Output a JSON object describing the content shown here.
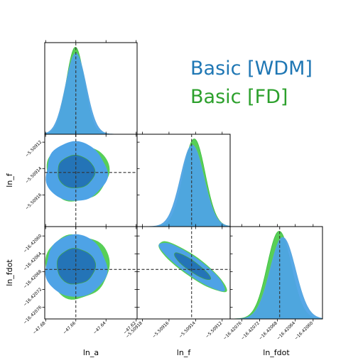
{
  "chart_data": {
    "type": "corner",
    "parameters": [
      "ln_a",
      "ln_f",
      "ln_fdot"
    ],
    "axis_labels": {
      "x": [
        "ln_a",
        "ln_f",
        "ln_fdot"
      ],
      "y": [
        "ln_f",
        "ln_fdot"
      ]
    },
    "truth": {
      "ln_a": -47.66,
      "ln_f": -5.509143,
      "ln_fdot": -16.420675
    },
    "ticks": {
      "ln_a": [
        -47.68,
        -47.66,
        -47.64,
        -47.62
      ],
      "ln_f": [
        -5.50918,
        -5.50916,
        -5.50914,
        -5.50912
      ],
      "ln_f_y": [
        -5.50912,
        -5.50914,
        -5.50916
      ],
      "ln_fdot": [
        -16.42076,
        -16.42072,
        -16.42068,
        -16.42064,
        -16.4206
      ],
      "ln_fdot_y": [
        -16.4206,
        -16.42064,
        -16.42068,
        -16.42072,
        -16.42076
      ]
    },
    "tick_text": {
      "ln_a": [
        "−47.68",
        "−47.66",
        "−47.64",
        "−47.62"
      ],
      "ln_f": [
        "−5.50918",
        "−5.50916",
        "−5.50914",
        "−5.50912"
      ],
      "ln_f_y": [
        "−5.50912",
        "−5.50914",
        "−5.50916"
      ],
      "ln_fdot": [
        "−16.42076",
        "−16.42072",
        "−16.42068",
        "−16.42064",
        "−16.42060"
      ],
      "ln_fdot_y": [
        "−16.42060",
        "−16.42064",
        "−16.42068",
        "−16.42072",
        "−16.42076"
      ]
    },
    "ranges": {
      "ln_a": [
        -47.6806,
        -47.6194
      ],
      "ln_f": [
        -5.509184,
        -5.509114
      ],
      "ln_fdot": [
        -16.420786,
        -16.420579
      ]
    },
    "series": [
      {
        "name": "Basic [WDM]",
        "color": "#1f77b4",
        "marginals": {
          "ln_a": {
            "center": -47.66,
            "sigma": 0.0068
          },
          "ln_f": {
            "center": -5.5091425,
            "sigma": 8.8e-06
          },
          "ln_fdot": {
            "center": -16.420668,
            "sigma": 2.85e-05
          }
        }
      },
      {
        "name": "Basic [FD]",
        "color": "#2ca02c",
        "marginals": {
          "ln_a": {
            "center": -47.6603,
            "sigma": 0.006
          },
          "ln_f": {
            "center": -5.509141,
            "sigma": 8.2e-06
          },
          "ln_fdot": {
            "center": -16.420676,
            "sigma": 2.7e-05
          }
        }
      }
    ],
    "legend": {
      "position": "top-right",
      "entries": [
        "Basic [WDM]",
        "Basic [FD]"
      ]
    },
    "grid": false
  }
}
